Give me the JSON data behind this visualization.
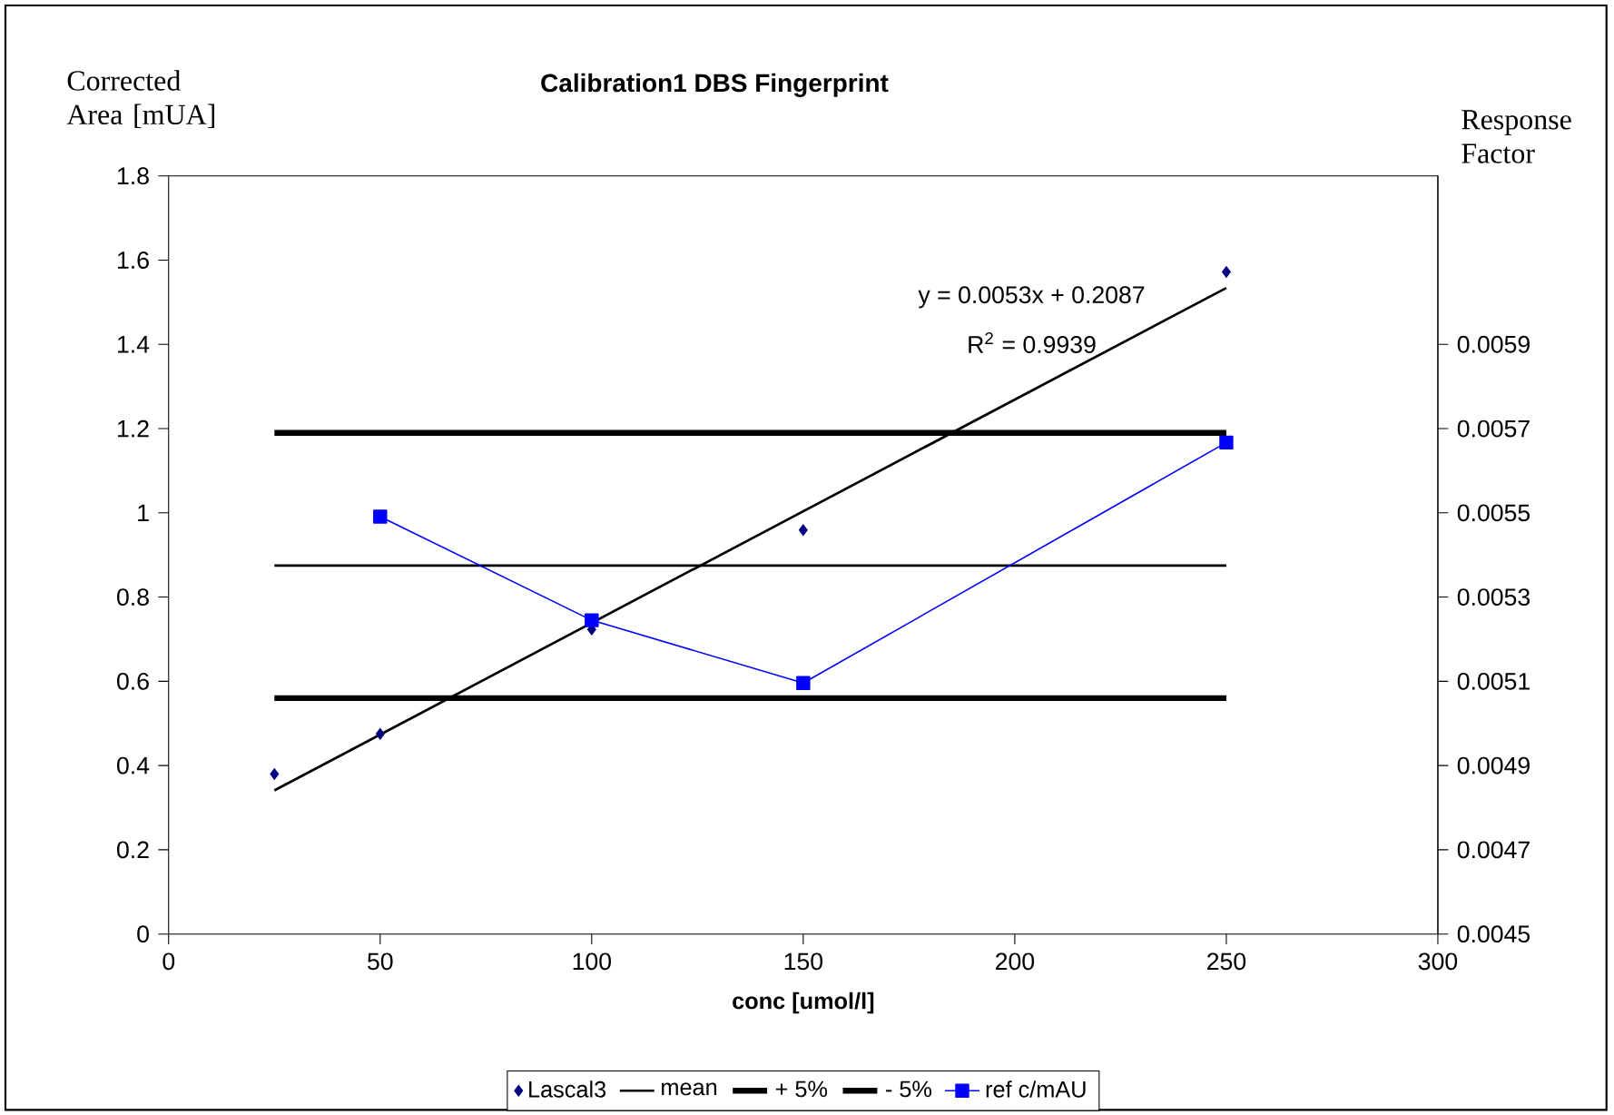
{
  "chart_data": {
    "type": "line",
    "title": "Calibration1 DBS Fingerprint",
    "xlabel": "conc [umol/l]",
    "ylabel": "Corrected Area [mUA]",
    "y2label": "Response Factor",
    "xlim": [
      0,
      300
    ],
    "xticks": [
      0,
      50,
      100,
      150,
      200,
      250,
      300
    ],
    "ylim": [
      0,
      1.8
    ],
    "yticks": [
      0,
      0.2,
      0.4,
      0.6,
      0.8,
      1,
      1.2,
      1.4,
      1.6,
      1.8
    ],
    "y2lim": [
      0.0045,
      0.0063
    ],
    "y2ticks": [
      0.0045,
      0.0047,
      0.0049,
      0.0051,
      0.0053,
      0.0055,
      0.0057,
      0.0059
    ],
    "legend": "bottom",
    "grid": false,
    "annotations": [
      "y = 0.0053x + 0.2087",
      "R$^{2}$ = 0.9939"
    ],
    "series": [
      {
        "name": "Lascal3",
        "type": "scatter",
        "marker": "diamond",
        "color": "#000080",
        "x": [
          25,
          50,
          100,
          150,
          250
        ],
        "values": [
          0.38,
          0.475,
          0.723,
          0.959,
          1.572
        ]
      },
      {
        "marker": "none",
        "line_style": "solid",
        "color": "#000000",
        "x": [
          25,
          250
        ],
        "values": [
          0.341,
          1.534
        ]
      },
      {
        "name": "mean",
        "axis": "y2",
        "marker": "none",
        "line_style": "solid",
        "color": "#000000",
        "x": [
          25,
          250
        ],
        "values": [
          0.005375,
          0.005375
        ]
      },
      {
        "name": "+ 5%",
        "axis": "y2",
        "marker": "none",
        "line_style": "solid",
        "color": "#000000",
        "x": [
          25,
          250
        ],
        "values": [
          0.00569,
          0.00569
        ]
      },
      {
        "name": "- 5%",
        "axis": "y2",
        "marker": "none",
        "line_style": "solid",
        "color": "#000000",
        "x": [
          25,
          250
        ],
        "values": [
          0.00506,
          0.00506
        ]
      },
      {
        "name": "ref c/mAU",
        "axis": "y2",
        "marker": "square",
        "line_style": "solid",
        "color": "#0000ff",
        "x": [
          50,
          100,
          150,
          250
        ],
        "values": [
          0.005491,
          0.005245,
          0.005096,
          0.005667
        ]
      }
    ]
  }
}
